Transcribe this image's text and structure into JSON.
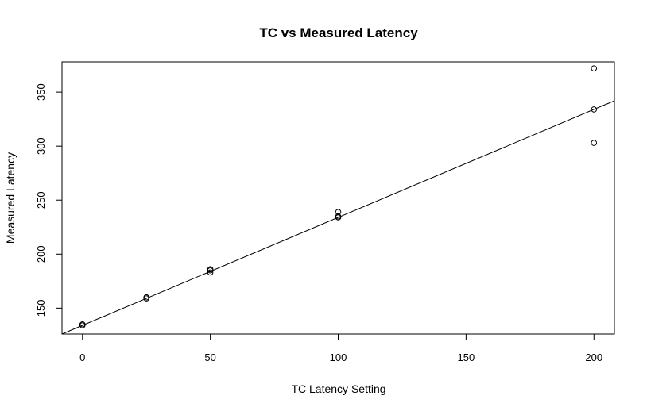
{
  "chart_data": {
    "type": "scatter",
    "title": "TC vs Measured Latency",
    "xlabel": "TC Latency Setting",
    "ylabel": "Measured Latency",
    "xlim": [
      -8,
      208
    ],
    "ylim": [
      126,
      378
    ],
    "x_ticks": [
      0,
      50,
      100,
      150,
      200
    ],
    "x_tick_labels": [
      "0",
      "50",
      "100",
      "150",
      "200"
    ],
    "y_ticks": [
      150,
      200,
      250,
      300,
      350
    ],
    "y_tick_labels": [
      "150",
      "200",
      "250",
      "300",
      "350"
    ],
    "grid": false,
    "legend": "none",
    "points": [
      {
        "x": 0,
        "y": 134
      },
      {
        "x": 0,
        "y": 135
      },
      {
        "x": 25,
        "y": 159
      },
      {
        "x": 25,
        "y": 160
      },
      {
        "x": 50,
        "y": 183
      },
      {
        "x": 50,
        "y": 185
      },
      {
        "x": 50,
        "y": 186
      },
      {
        "x": 100,
        "y": 234
      },
      {
        "x": 100,
        "y": 235
      },
      {
        "x": 100,
        "y": 239
      },
      {
        "x": 200,
        "y": 303
      },
      {
        "x": 200,
        "y": 334
      },
      {
        "x": 200,
        "y": 372
      }
    ],
    "fit_line": {
      "intercept": 134.0,
      "slope": 1.0
    }
  }
}
